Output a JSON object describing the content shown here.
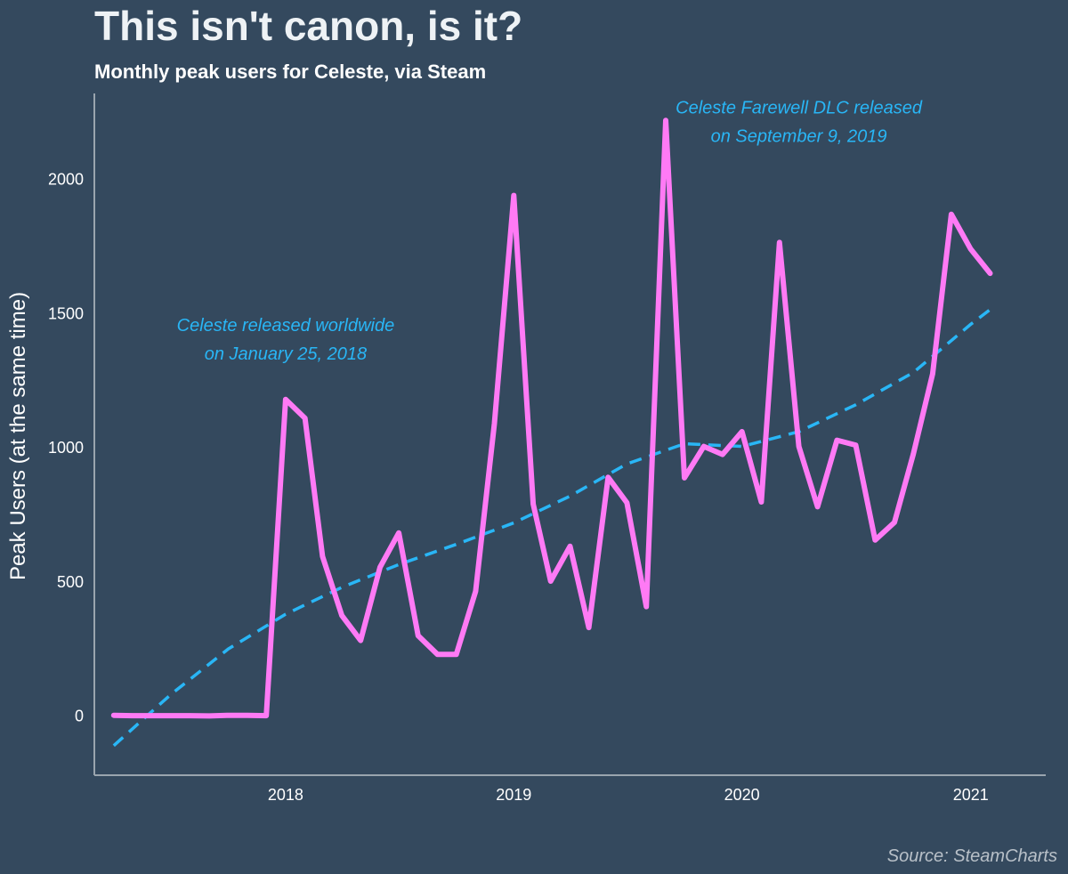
{
  "title": "This isn't canon, is it?",
  "subtitle": "Monthly peak users for Celeste, via Steam",
  "source": "Source: SteamCharts",
  "colors": {
    "background": "#34495e",
    "series": "#ff7af5",
    "trend": "#29b6f6",
    "axis": "#9aa5ae",
    "text": "#ffffff"
  },
  "chart_data": {
    "type": "line",
    "ylabel": "Peak Users (at the same time)",
    "xlabel": "",
    "xlim": [
      "2017-03-01",
      "2021-05-01"
    ],
    "ylim": [
      -220,
      2320
    ],
    "x_ticks": [
      {
        "date": "2018-01-01",
        "label": "2018"
      },
      {
        "date": "2019-01-01",
        "label": "2019"
      },
      {
        "date": "2020-01-01",
        "label": "2020"
      },
      {
        "date": "2021-01-01",
        "label": "2021"
      }
    ],
    "y_ticks": [
      {
        "value": 0,
        "label": "0"
      },
      {
        "value": 500,
        "label": "500"
      },
      {
        "value": 1000,
        "label": "1000"
      },
      {
        "value": 1500,
        "label": "1500"
      },
      {
        "value": 2000,
        "label": "2000"
      }
    ],
    "grid": false,
    "series": [
      {
        "x": [
          "2017-04-01",
          "2017-05-01",
          "2017-06-01",
          "2017-07-01",
          "2017-08-01",
          "2017-09-01",
          "2017-10-01",
          "2017-11-01",
          "2017-12-01",
          "2018-01-01",
          "2018-02-01",
          "2018-03-01",
          "2018-04-01",
          "2018-05-01",
          "2018-06-01",
          "2018-07-01",
          "2018-08-01",
          "2018-09-01",
          "2018-10-01",
          "2018-11-01",
          "2018-12-01",
          "2019-01-01",
          "2019-02-01",
          "2019-03-01",
          "2019-04-01",
          "2019-05-01",
          "2019-06-01",
          "2019-07-01",
          "2019-08-01",
          "2019-09-01",
          "2019-10-01",
          "2019-11-01",
          "2019-12-01",
          "2020-01-01",
          "2020-02-01",
          "2020-03-01",
          "2020-04-01",
          "2020-05-01",
          "2020-06-01",
          "2020-07-01",
          "2020-08-01",
          "2020-09-01",
          "2020-10-01",
          "2020-11-01",
          "2020-12-01",
          "2021-01-01",
          "2021-02-01"
        ],
        "values": [
          3,
          2,
          2,
          2,
          2,
          1,
          3,
          3,
          2,
          1180,
          1110,
          595,
          375,
          282,
          555,
          683,
          300,
          230,
          230,
          465,
          1090,
          1940,
          790,
          503,
          633,
          330,
          890,
          795,
          408,
          2220,
          888,
          1005,
          975,
          1060,
          798,
          1765,
          1005,
          780,
          1028,
          1010,
          656,
          722,
          975,
          1275,
          1870,
          1740,
          1650
        ],
        "color": "#ff7af5"
      },
      {
        "style": "dashed",
        "x": [
          "2017-04-01",
          "2017-07-01",
          "2017-10-01",
          "2018-01-01",
          "2018-04-01",
          "2018-07-01",
          "2018-10-01",
          "2019-01-01",
          "2019-04-01",
          "2019-07-01",
          "2019-10-01",
          "2020-01-01",
          "2020-04-01",
          "2020-07-01",
          "2020-10-01",
          "2021-01-01",
          "2021-02-01"
        ],
        "values": [
          -110,
          80,
          250,
          380,
          480,
          565,
          640,
          720,
          820,
          940,
          1015,
          1005,
          1060,
          1160,
          1280,
          1460,
          1515
        ],
        "color": "#29b6f6"
      }
    ],
    "annotations": [
      {
        "lines": [
          "Celeste released worldwide",
          "on January 25, 2018"
        ],
        "x": "2018-01-01",
        "y": 1435
      },
      {
        "lines": [
          "Celeste Farewell DLC released",
          "on September 9, 2019"
        ],
        "x": "2020-04-01",
        "y": 2245
      }
    ]
  }
}
